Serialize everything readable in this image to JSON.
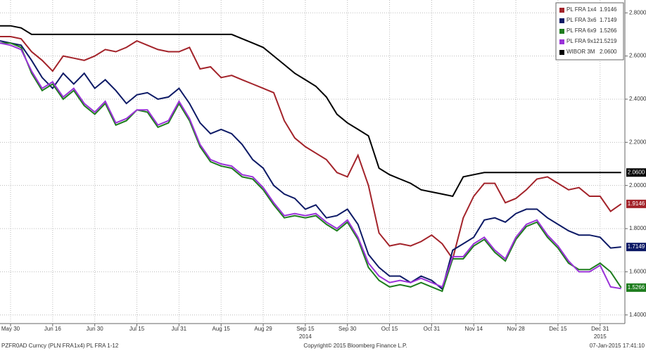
{
  "chart_data": {
    "type": "line",
    "categories": [
      null,
      "May 30",
      null,
      null,
      null,
      "Jun 16",
      null,
      null,
      null,
      "Jun 30",
      null,
      null,
      null,
      "Jul 15",
      null,
      null,
      null,
      "Jul 31",
      null,
      null,
      null,
      "Aug 15",
      null,
      null,
      null,
      "Aug 29",
      null,
      null,
      null,
      "Sep 15",
      null,
      null,
      null,
      "Sep 30",
      null,
      null,
      null,
      "Oct 15",
      null,
      null,
      null,
      "Oct 31",
      null,
      null,
      null,
      "Nov 14",
      null,
      null,
      null,
      "Nov 28",
      null,
      null,
      null,
      "Dec 15",
      null,
      null,
      null,
      "Dec 31",
      null,
      null
    ],
    "year_labels": [
      {
        "index": 29,
        "label": "2014"
      },
      {
        "index": 57,
        "label": "2015"
      }
    ],
    "ylim": [
      1.36,
      2.84
    ],
    "yticks": [
      {
        "value": 1.4,
        "label": "1.4000"
      },
      {
        "value": 1.6,
        "label": "1.6000"
      },
      {
        "value": 1.8,
        "label": "1.8000"
      },
      {
        "value": 2.0,
        "label": "2.0000"
      },
      {
        "value": 2.2,
        "label": "2.2000"
      },
      {
        "value": 2.4,
        "label": "2.4000"
      },
      {
        "value": 2.6,
        "label": "2.6000"
      },
      {
        "value": 2.8,
        "label": "2.8000"
      }
    ],
    "grid": true,
    "legend": "top-right",
    "series": [
      {
        "name": "PL FRA 1x4",
        "color": "#a3232a",
        "last": 1.9146,
        "axis_tag": true,
        "values": [
          2.69,
          2.69,
          2.68,
          2.62,
          2.58,
          2.53,
          2.6,
          2.59,
          2.58,
          2.6,
          2.63,
          2.62,
          2.64,
          2.67,
          2.65,
          2.63,
          2.62,
          2.62,
          2.64,
          2.54,
          2.55,
          2.5,
          2.51,
          2.49,
          2.47,
          2.45,
          2.43,
          2.3,
          2.22,
          2.18,
          2.15,
          2.12,
          2.06,
          2.04,
          2.14,
          2.0,
          1.78,
          1.72,
          1.73,
          1.72,
          1.74,
          1.77,
          1.73,
          1.66,
          1.85,
          1.95,
          2.01,
          2.01,
          1.92,
          1.94,
          1.98,
          2.03,
          2.04,
          2.01,
          1.98,
          1.99,
          1.95,
          1.95,
          1.88,
          1.9146
        ]
      },
      {
        "name": "PL FRA 3x6",
        "color": "#0d1a66",
        "last": 1.7149,
        "axis_tag": true,
        "values": [
          2.67,
          2.66,
          2.65,
          2.58,
          2.5,
          2.45,
          2.52,
          2.47,
          2.52,
          2.45,
          2.49,
          2.44,
          2.38,
          2.42,
          2.43,
          2.4,
          2.41,
          2.45,
          2.38,
          2.29,
          2.24,
          2.26,
          2.24,
          2.19,
          2.12,
          2.08,
          2.0,
          1.96,
          1.94,
          1.89,
          1.91,
          1.85,
          1.86,
          1.89,
          1.82,
          1.68,
          1.62,
          1.58,
          1.58,
          1.55,
          1.58,
          1.56,
          1.52,
          1.7,
          1.73,
          1.76,
          1.84,
          1.85,
          1.83,
          1.87,
          1.89,
          1.89,
          1.85,
          1.82,
          1.79,
          1.77,
          1.77,
          1.76,
          1.71,
          1.7149
        ]
      },
      {
        "name": "PL FRA 6x9",
        "color": "#1e7d1e",
        "last": 1.5266,
        "axis_tag": true,
        "values": [
          2.66,
          2.66,
          2.64,
          2.52,
          2.44,
          2.47,
          2.4,
          2.44,
          2.37,
          2.33,
          2.38,
          2.28,
          2.3,
          2.35,
          2.34,
          2.27,
          2.29,
          2.38,
          2.3,
          2.18,
          2.11,
          2.09,
          2.08,
          2.04,
          2.03,
          1.98,
          1.91,
          1.85,
          1.86,
          1.85,
          1.86,
          1.82,
          1.79,
          1.83,
          1.75,
          1.62,
          1.56,
          1.53,
          1.54,
          1.53,
          1.55,
          1.53,
          1.51,
          1.66,
          1.66,
          1.72,
          1.75,
          1.69,
          1.65,
          1.75,
          1.81,
          1.83,
          1.76,
          1.71,
          1.64,
          1.61,
          1.61,
          1.64,
          1.6,
          1.5266
        ]
      },
      {
        "name": "PL FRA 9x12",
        "color": "#9a32d8",
        "last": 1.5219,
        "axis_tag": false,
        "values": [
          2.66,
          2.65,
          2.63,
          2.53,
          2.45,
          2.48,
          2.41,
          2.45,
          2.38,
          2.34,
          2.39,
          2.29,
          2.31,
          2.35,
          2.35,
          2.28,
          2.3,
          2.39,
          2.31,
          2.19,
          2.12,
          2.1,
          2.09,
          2.05,
          2.04,
          1.99,
          1.92,
          1.86,
          1.87,
          1.86,
          1.87,
          1.83,
          1.8,
          1.84,
          1.76,
          1.64,
          1.58,
          1.55,
          1.56,
          1.55,
          1.57,
          1.55,
          1.53,
          1.67,
          1.67,
          1.73,
          1.76,
          1.7,
          1.66,
          1.76,
          1.82,
          1.84,
          1.77,
          1.72,
          1.65,
          1.6,
          1.6,
          1.63,
          1.53,
          1.5219
        ]
      },
      {
        "name": "WIBOR 3M",
        "color": "#000000",
        "last": {
          "value": 2.06,
          "label": "2.0600"
        },
        "axis_tag": true,
        "values": [
          2.74,
          2.74,
          2.73,
          2.7,
          2.7,
          2.7,
          2.7,
          2.7,
          2.7,
          2.7,
          2.7,
          2.7,
          2.7,
          2.7,
          2.7,
          2.7,
          2.7,
          2.7,
          2.7,
          2.7,
          2.7,
          2.7,
          2.7,
          2.68,
          2.66,
          2.64,
          2.6,
          2.56,
          2.52,
          2.49,
          2.46,
          2.41,
          2.33,
          2.29,
          2.26,
          2.23,
          2.08,
          2.05,
          2.03,
          2.01,
          1.98,
          1.97,
          1.96,
          1.95,
          2.04,
          2.05,
          2.06,
          2.06,
          2.06,
          2.06,
          2.06,
          2.06,
          2.06,
          2.06,
          2.06,
          2.06,
          2.06,
          2.06,
          2.06,
          2.06
        ]
      }
    ],
    "footer": {
      "left_1": "PZFR0AD Curncy (PLN FRA",
      "left_2": "1x4) PL FRA 1-12",
      "center": "Copyright© 2015 Bloomberg Finance L.P.",
      "right": "07-Jan-2015 17:41:10"
    }
  }
}
